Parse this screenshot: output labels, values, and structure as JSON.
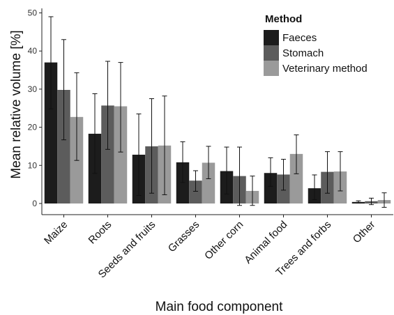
{
  "chart_data": {
    "type": "bar",
    "xlabel": "Main food component",
    "ylabel": "Mean relative volume [%]",
    "ylim": [
      -1.5,
      51
    ],
    "yticks": [
      0,
      10,
      20,
      30,
      40,
      50
    ],
    "categories": [
      "Maize",
      "Roots",
      "Seeds and fruits",
      "Grasses",
      "Other corn",
      "Animal food",
      "Trees and forbs",
      "Other"
    ],
    "legend": {
      "title": "Method",
      "position": "top-right"
    },
    "grid": false,
    "series": [
      {
        "name": "Faeces",
        "color": "#1c1c1c",
        "values": [
          37.0,
          18.3,
          12.8,
          10.8,
          8.5,
          8.0,
          4.0,
          0.4
        ],
        "err_low": [
          24.8,
          7.9,
          2.1,
          5.5,
          2.5,
          4.5,
          1.0,
          0.1
        ],
        "err_high": [
          49.0,
          28.8,
          23.5,
          16.2,
          14.8,
          12.0,
          7.5,
          0.7
        ]
      },
      {
        "name": "Stomach",
        "color": "#5c5c5c",
        "values": [
          29.8,
          25.7,
          15.0,
          6.0,
          7.2,
          7.6,
          8.3,
          0.6
        ],
        "err_low": [
          16.7,
          14.2,
          2.7,
          3.2,
          -0.5,
          3.5,
          2.7,
          -0.3
        ],
        "err_high": [
          43.0,
          37.3,
          27.5,
          8.6,
          14.8,
          11.6,
          13.6,
          1.4
        ]
      },
      {
        "name": "Veterinary method",
        "color": "#9a9a9a",
        "values": [
          22.7,
          25.5,
          15.2,
          10.7,
          3.3,
          13.0,
          8.4,
          0.9
        ],
        "err_low": [
          11.3,
          13.5,
          2.3,
          6.5,
          -0.5,
          7.8,
          3.3,
          -1.0
        ],
        "err_high": [
          34.3,
          37.0,
          28.2,
          15.0,
          7.2,
          18.0,
          13.6,
          2.8
        ]
      }
    ]
  }
}
